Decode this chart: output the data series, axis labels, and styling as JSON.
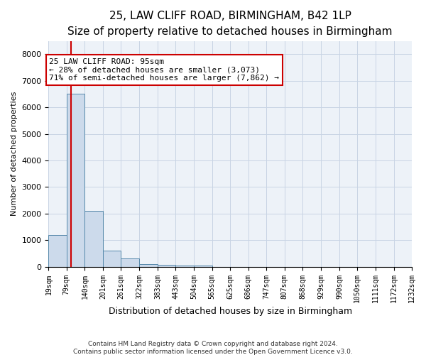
{
  "title": "25, LAW CLIFF ROAD, BIRMINGHAM, B42 1LP",
  "subtitle": "Size of property relative to detached houses in Birmingham",
  "xlabel": "Distribution of detached houses by size in Birmingham",
  "ylabel": "Number of detached properties",
  "footer_line1": "Contains HM Land Registry data © Crown copyright and database right 2024.",
  "footer_line2": "Contains public sector information licensed under the Open Government Licence v3.0.",
  "bar_color": "#ccdaeb",
  "bar_edge_color": "#5588aa",
  "grid_color": "#c8d4e4",
  "background_color": "#edf2f8",
  "annotation_text": "25 LAW CLIFF ROAD: 95sqm\n← 28% of detached houses are smaller (3,073)\n71% of semi-detached houses are larger (7,862) →",
  "annotation_box_color": "#cc0000",
  "red_line_x": 95,
  "red_line_color": "#cc0000",
  "ylim": [
    0,
    8500
  ],
  "yticks": [
    0,
    1000,
    2000,
    3000,
    4000,
    5000,
    6000,
    7000,
    8000
  ],
  "bin_edges": [
    19,
    79,
    140,
    201,
    261,
    322,
    383,
    443,
    504,
    565,
    625,
    686,
    747,
    807,
    868,
    929,
    990,
    1050,
    1111,
    1172,
    1232
  ],
  "bar_heights": [
    1200,
    6500,
    2100,
    600,
    300,
    100,
    70,
    50,
    30,
    0,
    0,
    0,
    0,
    0,
    0,
    0,
    0,
    0,
    0,
    0
  ],
  "tick_labels": [
    "19sqm",
    "79sqm",
    "140sqm",
    "201sqm",
    "261sqm",
    "322sqm",
    "383sqm",
    "443sqm",
    "504sqm",
    "565sqm",
    "625sqm",
    "686sqm",
    "747sqm",
    "807sqm",
    "868sqm",
    "929sqm",
    "990sqm",
    "1050sqm",
    "1111sqm",
    "1172sqm",
    "1232sqm"
  ],
  "title_fontsize": 11,
  "subtitle_fontsize": 9,
  "ylabel_fontsize": 8,
  "xlabel_fontsize": 9,
  "tick_fontsize": 7,
  "ytick_fontsize": 8,
  "footer_fontsize": 6.5,
  "annotation_fontsize": 8
}
